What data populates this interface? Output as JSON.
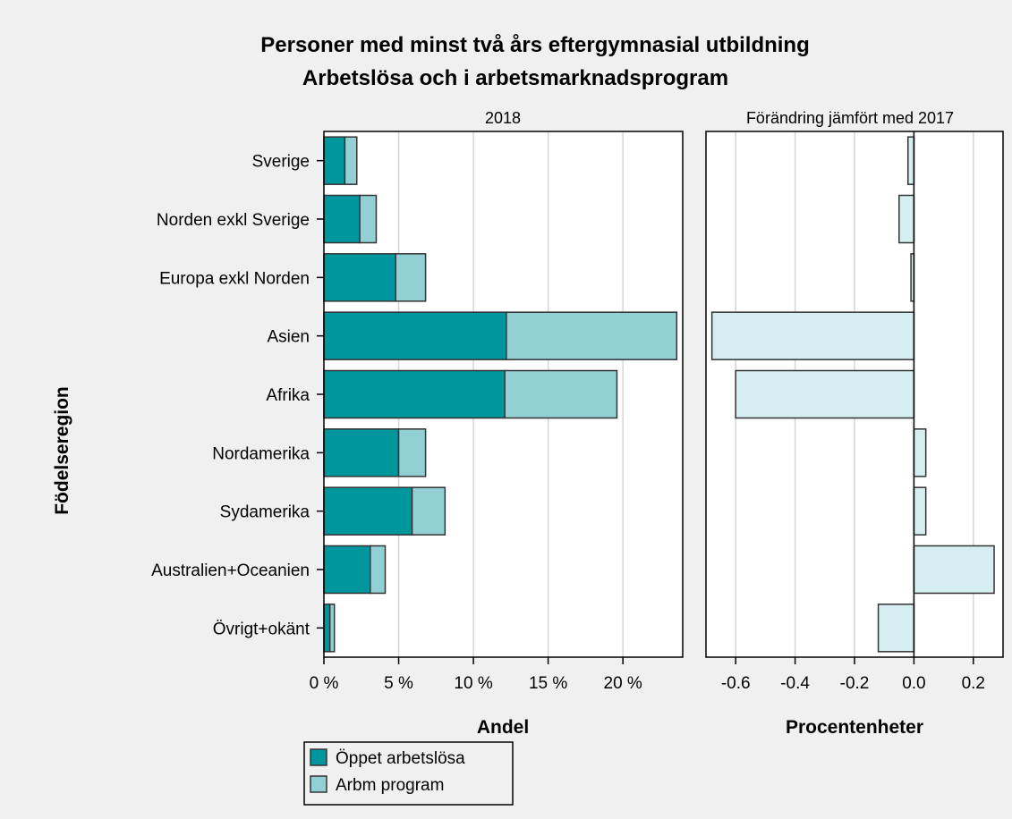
{
  "chart_data": {
    "title": "Personer med minst två års eftergymnasial utbildning",
    "subtitle": "Arbetslösa och i arbetsmarknadsprogram",
    "y_axis_label": "Födelseregion",
    "categories": [
      "Sverige",
      "Norden exkl Sverige",
      "Europa exkl Norden",
      "Asien",
      "Afrika",
      "Nordamerika",
      "Sydamerika",
      "Australien+Oceanien",
      "Övrigt+okänt"
    ],
    "panels": [
      {
        "type": "bar",
        "orientation": "horizontal",
        "stacked": true,
        "panel_title": "2018",
        "xlabel": "Andel",
        "xlim": [
          0,
          0.24
        ],
        "xticks": [
          0,
          0.05,
          0.1,
          0.15,
          0.2
        ],
        "xtick_labels": [
          "0 %",
          "5 %",
          "10 %",
          "15 %",
          "20 %"
        ],
        "grid": true,
        "series": [
          {
            "name": "Öppet arbetslösa",
            "color": "#00969e",
            "values": [
              0.014,
              0.024,
              0.048,
              0.122,
              0.121,
              0.05,
              0.059,
              0.031,
              0.004
            ]
          },
          {
            "name": "Arbm program",
            "color": "#93d0d6",
            "values": [
              0.008,
              0.011,
              0.02,
              0.114,
              0.075,
              0.018,
              0.022,
              0.01,
              0.003
            ]
          }
        ]
      },
      {
        "type": "bar",
        "orientation": "horizontal",
        "panel_title": "Förändring jämfört med 2017",
        "xlabel": "Procentenheter",
        "xlim": [
          -0.7,
          0.3
        ],
        "xticks": [
          -0.6,
          -0.4,
          -0.2,
          0.0,
          0.2
        ],
        "xtick_labels": [
          "-0.6",
          "-0.4",
          "-0.2",
          "0.0",
          "0.2"
        ],
        "grid": true,
        "color": "#d5eef0",
        "values": [
          -0.02,
          -0.05,
          -0.01,
          -0.68,
          -0.6,
          0.04,
          0.04,
          0.27,
          -0.12
        ]
      }
    ],
    "legend": {
      "placement": "bottom-left",
      "items": [
        {
          "label": "Öppet arbetslösa",
          "color": "#00969e"
        },
        {
          "label": "Arbm program",
          "color": "#93d0d6"
        }
      ]
    }
  }
}
